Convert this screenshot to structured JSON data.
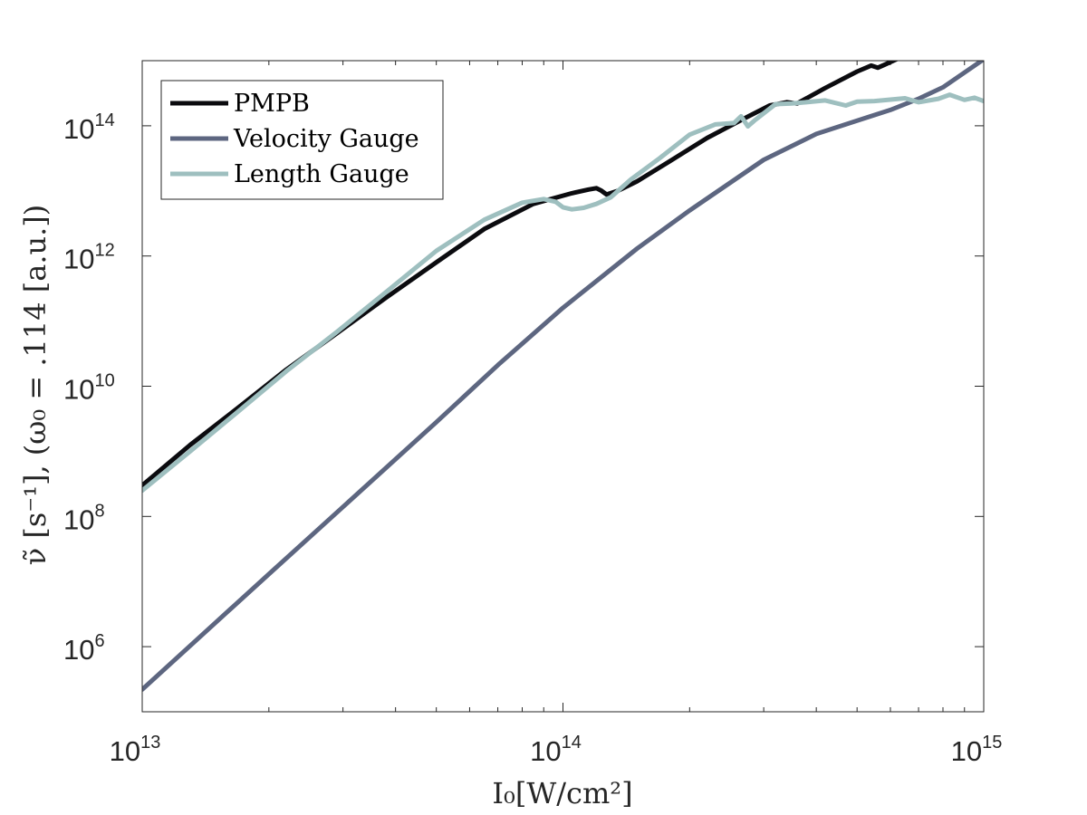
{
  "chart_data": {
    "type": "line",
    "xscale": "log",
    "yscale": "log",
    "xlim": [
      10000000000000.0,
      1000000000000000.0
    ],
    "ylim": [
      100000.0,
      1000000000000000.0
    ],
    "xlabel": "I₀[W/cm²]",
    "ylabel": "ν̃ [s⁻¹], (ω₀ = .114 [a.u.])",
    "xticks": [
      {
        "value": 10000000000000.0,
        "base": "10",
        "exp": "13"
      },
      {
        "value": 100000000000000.0,
        "base": "10",
        "exp": "14"
      },
      {
        "value": 1000000000000000.0,
        "base": "10",
        "exp": "15"
      }
    ],
    "yticks": [
      {
        "value": 1000000.0,
        "base": "10",
        "exp": "6"
      },
      {
        "value": 100000000.0,
        "base": "10",
        "exp": "8"
      },
      {
        "value": 10000000000.0,
        "base": "10",
        "exp": "10"
      },
      {
        "value": 1000000000000.0,
        "base": "10",
        "exp": "12"
      },
      {
        "value": 100000000000000.0,
        "base": "10",
        "exp": "14"
      }
    ],
    "legend": "top-left",
    "series": [
      {
        "name": "PMPB",
        "color": "#0b0b0f",
        "x": [
          10000000000000.0,
          13000000000000.0,
          17000000000000.0,
          22000000000000.0,
          29000000000000.0,
          38000000000000.0,
          50000000000000.0,
          65000000000000.0,
          85000000000000.0,
          105000000000000.0,
          115000000000000.0,
          120000000000000.0,
          123000000000000.0,
          127000000000000.0,
          135000000000000.0,
          150000000000000.0,
          180000000000000.0,
          220000000000000.0,
          270000000000000.0,
          310000000000000.0,
          340000000000000.0,
          360000000000000.0,
          420000000000000.0,
          500000000000000.0,
          540000000000000.0,
          560000000000000.0,
          580000000000000.0,
          620000000000000.0
        ],
        "y": [
          300000000.0,
          1250000000.0,
          4800000000.0,
          18000000000.0,
          65000000000.0,
          230000000000.0,
          800000000000.0,
          2600000000000.0,
          6300000000000.0,
          9200000000000.0,
          10500000000000.0,
          11000000000000.0,
          10200000000000.0,
          8800000000000.0,
          10000000000000.0,
          14000000000000.0,
          29000000000000.0,
          65000000000000.0,
          130000000000000.0,
          205000000000000.0,
          230000000000000.0,
          220000000000000.0,
          380000000000000.0,
          680000000000000.0,
          840000000000000.0,
          780000000000000.0,
          860000000000000.0,
          1050000000000000.0
        ]
      },
      {
        "name": "Velocity Gauge",
        "color": "#5d6680",
        "x": [
          10000000000000.0,
          15000000000000.0,
          20000000000000.0,
          30000000000000.0,
          50000000000000.0,
          70000000000000.0,
          100000000000000.0,
          150000000000000.0,
          200000000000000.0,
          300000000000000.0,
          400000000000000.0,
          500000000000000.0,
          600000000000000.0,
          700000000000000.0,
          800000000000000.0,
          1000000000000000.0
        ],
        "y": [
          220000.0,
          2400000.0,
          13000000.0,
          140000000.0,
          2800000000.0,
          21000000000.0,
          160000000000.0,
          1300000000000.0,
          5000000000000.0,
          30000000000000.0,
          75000000000000.0,
          120000000000000.0,
          175000000000000.0,
          260000000000000.0,
          390000000000000.0,
          1050000000000000.0
        ]
      },
      {
        "name": "Length Gauge",
        "color": "#9ebfbf",
        "x": [
          10000000000000.0,
          13000000000000.0,
          17000000000000.0,
          22000000000000.0,
          29000000000000.0,
          38000000000000.0,
          50000000000000.0,
          65000000000000.0,
          80000000000000.0,
          90000000000000.0,
          96000000000000.0,
          100000000000000.0,
          105000000000000.0,
          112000000000000.0,
          120000000000000.0,
          130000000000000.0,
          145000000000000.0,
          170000000000000.0,
          200000000000000.0,
          230000000000000.0,
          255000000000000.0,
          265000000000000.0,
          275000000000000.0,
          285000000000000.0,
          320000000000000.0,
          350000000000000.0,
          420000000000000.0,
          470000000000000.0,
          500000000000000.0,
          550000000000000.0,
          650000000000000.0,
          700000000000000.0,
          780000000000000.0,
          830000000000000.0,
          900000000000000.0,
          950000000000000.0,
          1000000000000000.0
        ],
        "y": [
          250000000.0,
          1000000000.0,
          4200000000.0,
          17000000000.0,
          68000000000.0,
          280000000000.0,
          1200000000000.0,
          3600000000000.0,
          6600000000000.0,
          7500000000000.0,
          6800000000000.0,
          5600000000000.0,
          5200000000000.0,
          5500000000000.0,
          6300000000000.0,
          8000000000000.0,
          15000000000000.0,
          32000000000000.0,
          73000000000000.0,
          105000000000000.0,
          110000000000000.0,
          140000000000000.0,
          98000000000000.0,
          120000000000000.0,
          215000000000000.0,
          220000000000000.0,
          245000000000000.0,
          205000000000000.0,
          235000000000000.0,
          240000000000000.0,
          265000000000000.0,
          230000000000000.0,
          260000000000000.0,
          300000000000000.0,
          250000000000000.0,
          270000000000000.0,
          240000000000000.0
        ]
      }
    ]
  }
}
